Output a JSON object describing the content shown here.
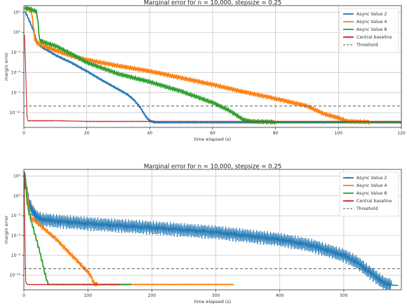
{
  "chart_data": [
    {
      "type": "line",
      "title": "Marginal error for n = 10,000, stepsize = 0.25",
      "xlabel": "time elapsed (s)",
      "ylabel": "margin error",
      "xlim": [
        0,
        120
      ],
      "ylim_log10": [
        -14.2,
        4
      ],
      "x_ticks": [
        0,
        20,
        40,
        60,
        80,
        100,
        120
      ],
      "y_ticks": [
        {
          "p": 3,
          "label": "10³"
        },
        {
          "p": 0,
          "label": "10⁰"
        },
        {
          "p": -3,
          "label": "10⁻³"
        },
        {
          "p": -6,
          "label": "10⁻⁶"
        },
        {
          "p": -9,
          "label": "10⁻⁹"
        },
        {
          "p": -12,
          "label": "10⁻¹²"
        }
      ],
      "grid": true,
      "legend_position": "top-right",
      "threshold": 1e-11,
      "series": [
        {
          "name": "Async Value 2",
          "color": "#1f77b4",
          "style": "line",
          "band": 0.15,
          "points": [
            [
              0.3,
              3.2
            ],
            [
              1,
              2.5
            ],
            [
              2,
              1.5
            ],
            [
              3,
              0.3
            ],
            [
              4,
              -1.2
            ],
            [
              5,
              -1.9
            ],
            [
              6,
              -2.3
            ],
            [
              8,
              -2.8
            ],
            [
              10,
              -3.4
            ],
            [
              15,
              -4.5
            ],
            [
              20,
              -5.8
            ],
            [
              25,
              -7.2
            ],
            [
              30,
              -8.5
            ],
            [
              33,
              -9.3
            ],
            [
              35,
              -10.1
            ],
            [
              37,
              -11.2
            ],
            [
              38,
              -12
            ],
            [
              39,
              -12.7
            ],
            [
              40,
              -13.2
            ],
            [
              42,
              -13.5
            ],
            [
              60,
              -13.5
            ],
            [
              85,
              -13.5
            ],
            [
              100,
              -13.5
            ],
            [
              120,
              -13.5
            ]
          ]
        },
        {
          "name": "Async Value 4",
          "color": "#ff7f0e",
          "style": "line",
          "band": 0.3,
          "points": [
            [
              0.3,
              3.6
            ],
            [
              1.5,
              3.5
            ],
            [
              2.5,
              3
            ],
            [
              3,
              1
            ],
            [
              3.5,
              -1
            ],
            [
              4,
              -1.5
            ],
            [
              5,
              -1.8
            ],
            [
              8,
              -2.3
            ],
            [
              10,
              -2.7
            ],
            [
              15,
              -3.5
            ],
            [
              20,
              -4.1
            ],
            [
              30,
              -5
            ],
            [
              40,
              -5.8
            ],
            [
              50,
              -6.8
            ],
            [
              60,
              -7.8
            ],
            [
              70,
              -8.9
            ],
            [
              80,
              -9.9
            ],
            [
              90,
              -11
            ],
            [
              95,
              -12.1
            ],
            [
              100,
              -12.8
            ],
            [
              103,
              -13.3
            ],
            [
              110,
              -13.4
            ],
            [
              120,
              -13.4
            ]
          ]
        },
        {
          "name": "Async Value 8",
          "color": "#2ca02c",
          "style": "line",
          "band": 0.3,
          "points": [
            [
              0.3,
              3.6
            ],
            [
              2,
              3.5
            ],
            [
              4,
              3.1
            ],
            [
              4.5,
              1.5
            ],
            [
              5,
              -1.2
            ],
            [
              6,
              -1.4
            ],
            [
              10,
              -2
            ],
            [
              15,
              -3.2
            ],
            [
              20,
              -4.5
            ],
            [
              30,
              -6.2
            ],
            [
              40,
              -7.4
            ],
            [
              50,
              -8.8
            ],
            [
              60,
              -10.5
            ],
            [
              65,
              -11.6
            ],
            [
              68,
              -12.5
            ],
            [
              70,
              -13.1
            ],
            [
              72,
              -13.3
            ],
            [
              80,
              -13.4
            ],
            [
              120,
              -13.4
            ]
          ]
        },
        {
          "name": "Central baseline",
          "color": "#d62728",
          "style": "marker",
          "band": 0,
          "points": [
            [
              0.2,
              -0.5
            ],
            [
              0.4,
              -3
            ],
            [
              0.6,
              -6
            ],
            [
              0.8,
              -9.5
            ],
            [
              1,
              -12.5
            ],
            [
              1.2,
              -13.2
            ],
            [
              3,
              -13.2
            ],
            [
              10,
              -13.2
            ],
            [
              20,
              -13.3
            ],
            [
              40,
              -13.3
            ],
            [
              60,
              -13.3
            ],
            [
              80,
              -13.3
            ],
            [
              100,
              -13.3
            ],
            [
              120,
              -13.3
            ]
          ]
        },
        {
          "name": "Threshold",
          "color": "#555555",
          "style": "dashed",
          "band": 0,
          "points": [
            [
              0,
              -11
            ],
            [
              120,
              -11
            ]
          ]
        }
      ]
    },
    {
      "type": "line",
      "title": "Marginal error for n = 10,000, stepsize = 0.25",
      "xlabel": "time elapsed (s)",
      "ylabel": "margin error",
      "xlim": [
        0,
        590
      ],
      "ylim_log10": [
        -14.2,
        4
      ],
      "x_ticks": [
        0,
        100,
        200,
        300,
        400,
        500
      ],
      "y_ticks": [
        {
          "p": 3,
          "label": "10³"
        },
        {
          "p": 0,
          "label": "10⁰"
        },
        {
          "p": -3,
          "label": "10⁻³"
        },
        {
          "p": -6,
          "label": "10⁻⁶"
        },
        {
          "p": -9,
          "label": "10⁻⁹"
        },
        {
          "p": -12,
          "label": "10⁻¹²"
        }
      ],
      "grid": true,
      "legend_position": "top-right",
      "threshold": 1e-11,
      "series": [
        {
          "name": "Async Value 2",
          "color": "#1f77b4",
          "style": "marker",
          "band": 1.0,
          "points": [
            [
              0.5,
              3.5
            ],
            [
              2,
              2
            ],
            [
              5,
              0
            ],
            [
              10,
              -1.5
            ],
            [
              15,
              -2.5
            ],
            [
              20,
              -3.2
            ],
            [
              30,
              -3.6
            ],
            [
              50,
              -3.8
            ],
            [
              100,
              -4.2
            ],
            [
              200,
              -4.8
            ],
            [
              300,
              -5.5
            ],
            [
              400,
              -6.6
            ],
            [
              450,
              -7.5
            ],
            [
              500,
              -9
            ],
            [
              520,
              -10
            ],
            [
              540,
              -11.5
            ],
            [
              555,
              -12.6
            ],
            [
              565,
              -13.3
            ],
            [
              575,
              -13.5
            ],
            [
              585,
              -13.5
            ]
          ]
        },
        {
          "name": "Async Value 4",
          "color": "#ff7f0e",
          "style": "line",
          "band": 0.3,
          "points": [
            [
              0.5,
              3.5
            ],
            [
              5,
              1
            ],
            [
              8,
              -2
            ],
            [
              10,
              -3.2
            ],
            [
              20,
              -4
            ],
            [
              50,
              -6.5
            ],
            [
              80,
              -9.5
            ],
            [
              100,
              -11.5
            ],
            [
              105,
              -12.2
            ],
            [
              110,
              -13.3
            ],
            [
              115,
              -13.4
            ],
            [
              200,
              -13.4
            ],
            [
              300,
              -13.4
            ],
            [
              328,
              -13.4
            ]
          ]
        },
        {
          "name": "Async Value 8",
          "color": "#2ca02c",
          "style": "line",
          "band": 0.3,
          "points": [
            [
              0.5,
              3.5
            ],
            [
              3,
              2.5
            ],
            [
              5,
              -1
            ],
            [
              8,
              -2.5
            ],
            [
              15,
              -5
            ],
            [
              25,
              -8.5
            ],
            [
              30,
              -10.5
            ],
            [
              35,
              -12.5
            ],
            [
              38,
              -13.4
            ],
            [
              50,
              -13.4
            ],
            [
              100,
              -13.4
            ],
            [
              168,
              -13.4
            ]
          ]
        },
        {
          "name": "Central baseline",
          "color": "#d62728",
          "style": "marker",
          "band": 0,
          "points": [
            [
              0.5,
              3.5
            ],
            [
              1,
              -2
            ],
            [
              2,
              -8
            ],
            [
              3,
              -13
            ],
            [
              5,
              -13.4
            ],
            [
              50,
              -13.4
            ],
            [
              100,
              -13.4
            ],
            [
              150,
              -13.4
            ]
          ]
        },
        {
          "name": "Threshold",
          "color": "#555555",
          "style": "dashed",
          "band": 0,
          "points": [
            [
              0,
              -11
            ],
            [
              590,
              -11
            ]
          ]
        }
      ]
    }
  ]
}
